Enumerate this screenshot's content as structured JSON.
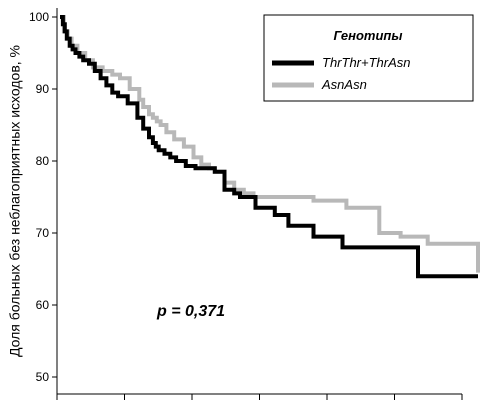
{
  "chart_data": {
    "type": "line",
    "title": "",
    "xlabel": "",
    "ylabel": "Доля больных без неблагоприятных исходов, %",
    "ylim": [
      48,
      101
    ],
    "xlim": [
      0,
      432
    ],
    "yticks": [
      50,
      60,
      70,
      80,
      90,
      100
    ],
    "xtick_count": 7,
    "grid": false,
    "step": true,
    "legend": {
      "title": "Генотипы",
      "placement": "top-right"
    },
    "annotation": "p = 0,371",
    "series": [
      {
        "name": "ThrThr+ThrAsn",
        "color": "#000000",
        "x": [
          0,
          3,
          5,
          7,
          10,
          13,
          16,
          20,
          24,
          30,
          36,
          42,
          48,
          54,
          60,
          70,
          80,
          86,
          92,
          96,
          99,
          102,
          105,
          108,
          114,
          120,
          130,
          140,
          150,
          160,
          170,
          180,
          186,
          202,
          222,
          236,
          262,
          276,
          292,
          324,
          370,
          390,
          432
        ],
        "y": [
          100,
          99,
          98,
          97,
          96,
          95.5,
          95,
          94.5,
          94,
          93.5,
          92.5,
          91.5,
          90.5,
          89.5,
          89,
          88,
          86,
          84.5,
          83.3,
          82.5,
          82,
          81.5,
          81.5,
          81,
          80.5,
          80,
          79.3,
          79,
          79,
          78.5,
          76,
          75.5,
          75,
          73.5,
          72.5,
          71,
          69.5,
          69.5,
          68,
          68,
          64,
          64,
          64
        ]
      },
      {
        "name": "AsnAsn",
        "color": "#b8b8b8",
        "x": [
          0,
          4,
          8,
          12,
          18,
          26,
          34,
          44,
          54,
          62,
          72,
          82,
          86,
          92,
          96,
          100,
          104,
          110,
          118,
          128,
          138,
          146,
          154,
          160,
          170,
          180,
          190,
          200,
          222,
          244,
          262,
          284,
          296,
          330,
          352,
          380,
          392,
          432
        ],
        "y": [
          100,
          98,
          97,
          96,
          95,
          94,
          93,
          92.5,
          92,
          91.5,
          90,
          88.5,
          87.5,
          86.5,
          86,
          85.5,
          85,
          84,
          83,
          82,
          80.5,
          79.5,
          79,
          78.5,
          77,
          76,
          75.5,
          75,
          75,
          75,
          74.5,
          74.5,
          73.5,
          70,
          69.5,
          68.5,
          68.5,
          64.5
        ]
      }
    ]
  }
}
